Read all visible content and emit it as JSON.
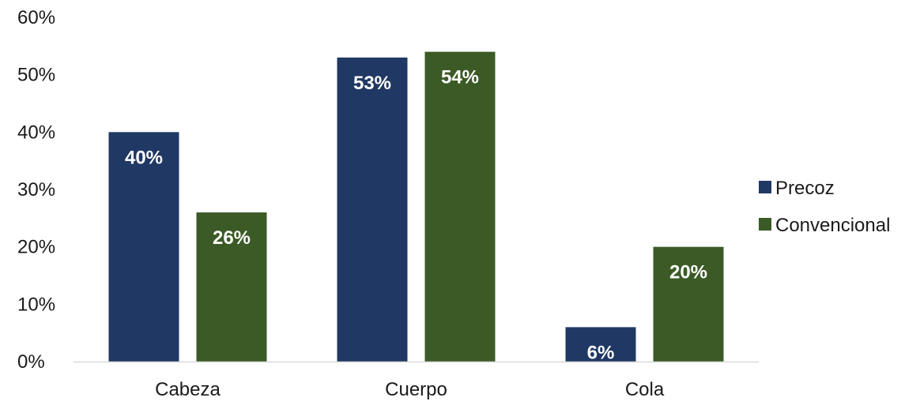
{
  "chart_data": {
    "type": "bar",
    "categories": [
      "Cabeza",
      "Cuerpo",
      "Cola"
    ],
    "series": [
      {
        "name": "Precoz",
        "values": [
          40,
          53,
          6
        ],
        "labels": [
          "40%",
          "53%",
          "6%"
        ],
        "color": "#203864"
      },
      {
        "name": "Convencional",
        "values": [
          26,
          54,
          20
        ],
        "labels": [
          "26%",
          "54%",
          "20%"
        ],
        "color": "#3b5a25"
      }
    ],
    "title": "",
    "xlabel": "",
    "ylabel": "",
    "ylim": [
      0,
      60
    ],
    "yticks": [
      "0%",
      "10%",
      "20%",
      "30%",
      "40%",
      "50%",
      "60%"
    ],
    "grid": false,
    "legend_position": "right"
  }
}
